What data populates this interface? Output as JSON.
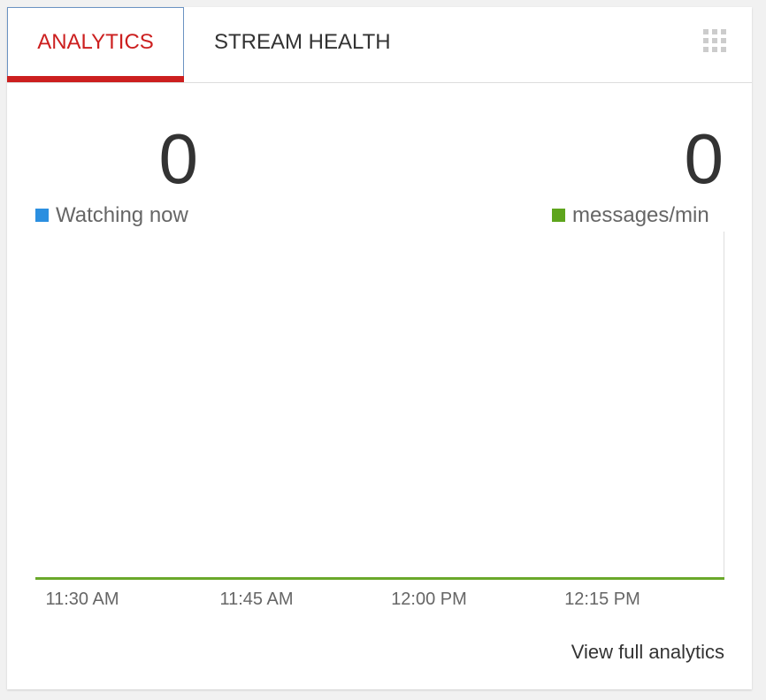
{
  "tabs": [
    "ANALYTICS",
    "STREAM HEALTH"
  ],
  "stats": [
    {
      "value": 0,
      "label": "Watching now"
    },
    {
      "value": 0,
      "label": "messages/min"
    }
  ],
  "x_labels": [
    "11:30 AM",
    "11:45 AM",
    "12:00 PM",
    "12:15 PM"
  ],
  "link": "View full analytics"
}
